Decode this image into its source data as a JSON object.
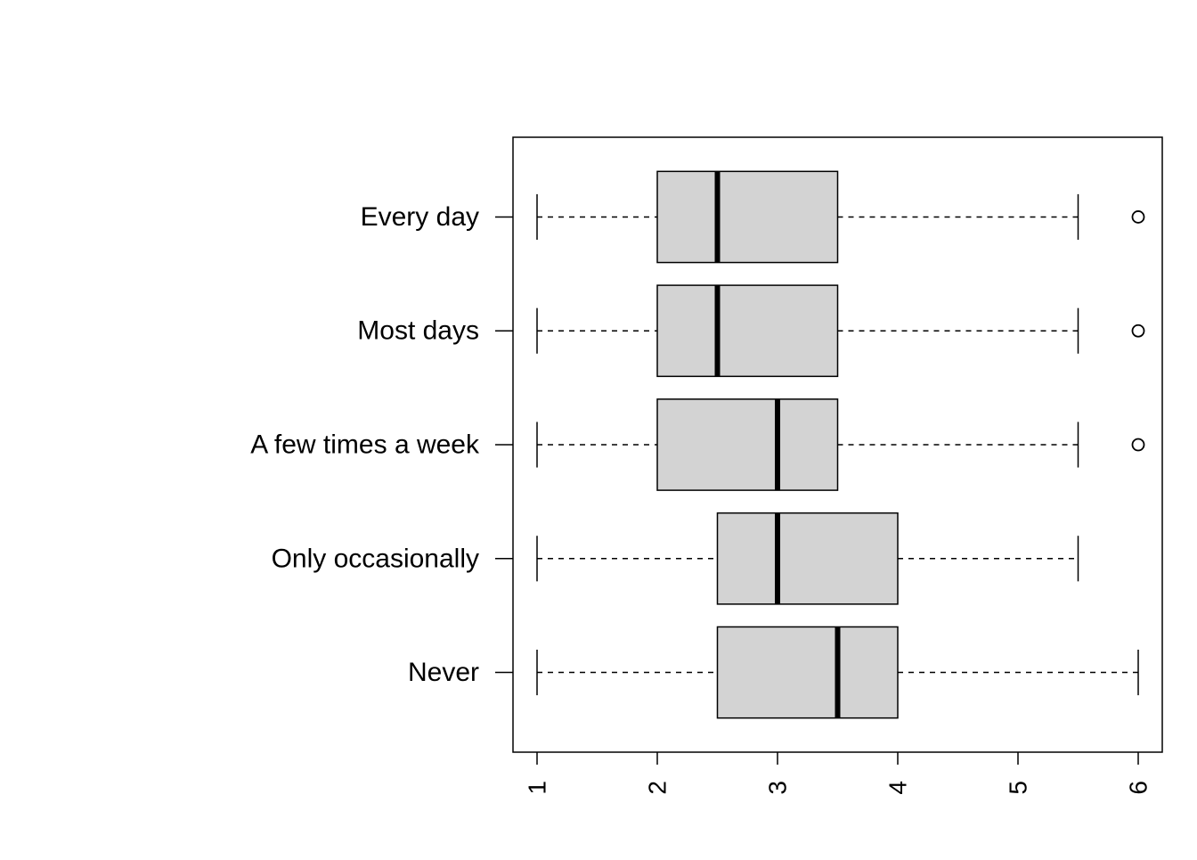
{
  "chart_data": {
    "type": "boxplot",
    "orientation": "horizontal",
    "title": "",
    "xlabel": "",
    "ylabel": "",
    "xlim": [
      0.8,
      6.2
    ],
    "x_ticks": [
      "1",
      "2",
      "3",
      "4",
      "5",
      "6"
    ],
    "grid": false,
    "legend": "none",
    "colors": {
      "box_fill": "#d3d3d3",
      "stroke": "#000000"
    },
    "categories": [
      "Every day",
      "Most days",
      "A few times a week",
      "Only occasionally",
      "Never"
    ],
    "boxes": [
      {
        "label": "Every day",
        "whisker_low": 1,
        "q1": 2,
        "median": 2.5,
        "q3": 3.5,
        "whisker_high": 5.5,
        "outliers": [
          6
        ]
      },
      {
        "label": "Most days",
        "whisker_low": 1,
        "q1": 2,
        "median": 2.5,
        "q3": 3.5,
        "whisker_high": 5.5,
        "outliers": [
          6
        ]
      },
      {
        "label": "A few times a week",
        "whisker_low": 1,
        "q1": 2,
        "median": 3,
        "q3": 3.5,
        "whisker_high": 5.5,
        "outliers": [
          6
        ]
      },
      {
        "label": "Only occasionally",
        "whisker_low": 1,
        "q1": 2.5,
        "median": 3,
        "q3": 4,
        "whisker_high": 5.5,
        "outliers": []
      },
      {
        "label": "Never",
        "whisker_low": 1,
        "q1": 2.5,
        "median": 3.5,
        "q3": 4,
        "whisker_high": 6,
        "outliers": []
      }
    ]
  }
}
